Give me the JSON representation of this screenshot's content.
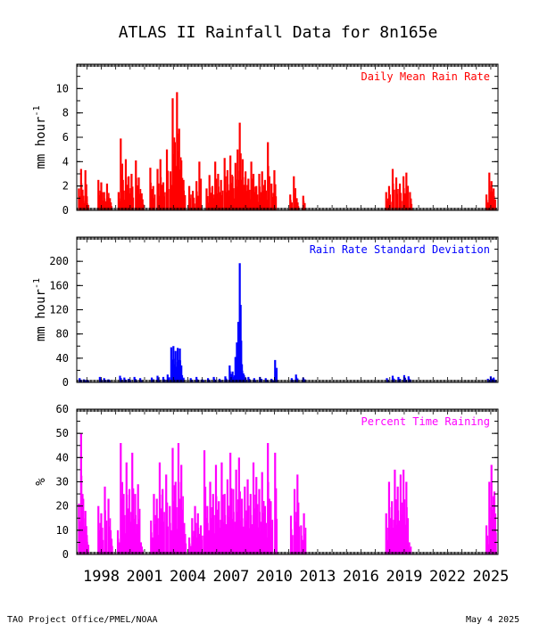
{
  "title": "ATLAS II Rainfall Data for 8n165e",
  "footer_left": "TAO Project Office/PMEL/NOAA",
  "footer_right": "May  4 2025",
  "colors": {
    "rate": "#ff0000",
    "sd": "#0000ff",
    "pct": "#ff00ff",
    "axis": "#000000"
  },
  "chart_data": [
    {
      "type": "bar",
      "label": "Daily Mean Rain Rate",
      "ylabel": "mm hour-1",
      "ylim": [
        0,
        12
      ],
      "yticks": [
        0,
        2,
        4,
        6,
        8,
        10
      ],
      "xlim": [
        1996.3,
        2025.5
      ],
      "series_points": [
        [
          1996.45,
          1.8
        ],
        [
          1996.6,
          3.4
        ],
        [
          1996.75,
          1.2
        ],
        [
          1996.9,
          3.3
        ],
        [
          1997.0,
          0.9
        ],
        [
          1997.8,
          2.5
        ],
        [
          1998.0,
          2.3
        ],
        [
          1998.2,
          1.5
        ],
        [
          1998.4,
          2.2
        ],
        [
          1998.6,
          1.0
        ],
        [
          1999.2,
          1.5
        ],
        [
          1999.35,
          5.9
        ],
        [
          1999.5,
          2.5
        ],
        [
          1999.7,
          4.2
        ],
        [
          1999.9,
          2.8
        ],
        [
          2000.1,
          3.0
        ],
        [
          2000.4,
          4.1
        ],
        [
          2000.6,
          2.7
        ],
        [
          2000.8,
          1.4
        ],
        [
          2001.4,
          3.5
        ],
        [
          2001.6,
          2.0
        ],
        [
          2001.9,
          3.4
        ],
        [
          2002.1,
          4.2
        ],
        [
          2002.3,
          2.3
        ],
        [
          2002.55,
          5.0
        ],
        [
          2002.8,
          3.2
        ],
        [
          2002.95,
          9.2
        ],
        [
          2003.1,
          5.6
        ],
        [
          2003.25,
          9.7
        ],
        [
          2003.4,
          6.7
        ],
        [
          2003.55,
          4.1
        ],
        [
          2003.7,
          2.5
        ],
        [
          2004.1,
          2.0
        ],
        [
          2004.35,
          1.6
        ],
        [
          2004.6,
          2.4
        ],
        [
          2004.8,
          4.0
        ],
        [
          2005.3,
          1.8
        ],
        [
          2005.5,
          2.9
        ],
        [
          2005.7,
          2.0
        ],
        [
          2005.9,
          4.0
        ],
        [
          2006.1,
          3.0
        ],
        [
          2006.3,
          2.5
        ],
        [
          2006.55,
          4.3
        ],
        [
          2006.75,
          3.3
        ],
        [
          2006.95,
          4.5
        ],
        [
          2007.1,
          2.8
        ],
        [
          2007.3,
          3.9
        ],
        [
          2007.45,
          5.0
        ],
        [
          2007.6,
          7.2
        ],
        [
          2007.8,
          4.2
        ],
        [
          2008.0,
          3.2
        ],
        [
          2008.2,
          2.6
        ],
        [
          2008.4,
          4.0
        ],
        [
          2008.55,
          3.0
        ],
        [
          2008.75,
          2.0
        ],
        [
          2008.95,
          3.0
        ],
        [
          2009.15,
          3.2
        ],
        [
          2009.35,
          2.5
        ],
        [
          2009.55,
          5.6
        ],
        [
          2009.8,
          2.2
        ],
        [
          2010.0,
          3.3
        ],
        [
          2011.1,
          1.3
        ],
        [
          2011.35,
          2.8
        ],
        [
          2011.55,
          1.0
        ],
        [
          2012.0,
          1.2
        ],
        [
          2017.75,
          1.5
        ],
        [
          2017.95,
          2.0
        ],
        [
          2018.2,
          3.4
        ],
        [
          2018.45,
          2.7
        ],
        [
          2018.7,
          2.2
        ],
        [
          2018.95,
          2.8
        ],
        [
          2019.15,
          3.1
        ],
        [
          2019.4,
          1.5
        ],
        [
          2024.7,
          1.3
        ],
        [
          2024.9,
          3.1
        ],
        [
          2025.05,
          2.4
        ],
        [
          2025.2,
          1.8
        ]
      ]
    },
    {
      "type": "bar",
      "label": "Rain Rate Standard Deviation",
      "ylabel": "mm hour-1",
      "ylim": [
        0,
        240
      ],
      "yticks": [
        0,
        40,
        80,
        120,
        160,
        200
      ],
      "xlim": [
        1996.3,
        2025.5
      ],
      "series_points": [
        [
          1996.5,
          7
        ],
        [
          1996.8,
          5
        ],
        [
          1997.0,
          4
        ],
        [
          1997.9,
          9
        ],
        [
          1998.2,
          7
        ],
        [
          1998.5,
          5
        ],
        [
          1999.3,
          11
        ],
        [
          1999.6,
          8
        ],
        [
          1999.9,
          6
        ],
        [
          2000.3,
          9
        ],
        [
          2000.7,
          7
        ],
        [
          2001.5,
          8
        ],
        [
          2001.9,
          11
        ],
        [
          2002.3,
          9
        ],
        [
          2002.6,
          13
        ],
        [
          2002.85,
          58
        ],
        [
          2003.0,
          60
        ],
        [
          2003.15,
          52
        ],
        [
          2003.3,
          57
        ],
        [
          2003.45,
          56
        ],
        [
          2003.6,
          12
        ],
        [
          2004.2,
          7
        ],
        [
          2004.6,
          9
        ],
        [
          2005.0,
          5
        ],
        [
          2005.4,
          7
        ],
        [
          2005.8,
          9
        ],
        [
          2006.2,
          6
        ],
        [
          2006.6,
          10
        ],
        [
          2006.9,
          28
        ],
        [
          2007.1,
          18
        ],
        [
          2007.3,
          42
        ],
        [
          2007.4,
          66
        ],
        [
          2007.5,
          100
        ],
        [
          2007.6,
          197
        ],
        [
          2007.75,
          30
        ],
        [
          2007.9,
          12
        ],
        [
          2008.2,
          9
        ],
        [
          2008.6,
          7
        ],
        [
          2009.0,
          9
        ],
        [
          2009.4,
          7
        ],
        [
          2009.8,
          6
        ],
        [
          2010.05,
          37
        ],
        [
          2011.2,
          7
        ],
        [
          2011.5,
          13
        ],
        [
          2012.0,
          8
        ],
        [
          2017.8,
          7
        ],
        [
          2018.2,
          11
        ],
        [
          2018.6,
          9
        ],
        [
          2019.0,
          12
        ],
        [
          2019.3,
          10
        ],
        [
          2024.8,
          6
        ],
        [
          2025.0,
          10
        ],
        [
          2025.2,
          8
        ]
      ]
    },
    {
      "type": "bar",
      "label": "Percent Time Raining",
      "ylabel": "%",
      "ylim": [
        0,
        60
      ],
      "yticks": [
        0,
        10,
        20,
        30,
        40,
        50,
        60
      ],
      "xlim": [
        1996.3,
        2025.5
      ],
      "series_points": [
        [
          1996.45,
          21
        ],
        [
          1996.6,
          50
        ],
        [
          1996.75,
          23
        ],
        [
          1996.9,
          18
        ],
        [
          1997.0,
          8
        ],
        [
          1997.8,
          20
        ],
        [
          1998.0,
          17
        ],
        [
          1998.25,
          28
        ],
        [
          1998.5,
          23
        ],
        [
          1998.65,
          10
        ],
        [
          1999.15,
          10
        ],
        [
          1999.35,
          46
        ],
        [
          1999.55,
          25
        ],
        [
          1999.75,
          38
        ],
        [
          1999.95,
          27
        ],
        [
          2000.15,
          42
        ],
        [
          2000.35,
          25
        ],
        [
          2000.55,
          29
        ],
        [
          2000.75,
          5
        ],
        [
          2001.45,
          14
        ],
        [
          2001.65,
          25
        ],
        [
          2001.85,
          23
        ],
        [
          2002.05,
          38
        ],
        [
          2002.25,
          27
        ],
        [
          2002.5,
          33
        ],
        [
          2002.75,
          20
        ],
        [
          2002.95,
          44
        ],
        [
          2003.15,
          30
        ],
        [
          2003.35,
          46
        ],
        [
          2003.55,
          37
        ],
        [
          2003.75,
          13
        ],
        [
          2004.1,
          7
        ],
        [
          2004.3,
          15
        ],
        [
          2004.5,
          20
        ],
        [
          2004.7,
          17
        ],
        [
          2004.9,
          12
        ],
        [
          2005.15,
          43
        ],
        [
          2005.35,
          20
        ],
        [
          2005.55,
          30
        ],
        [
          2005.75,
          25
        ],
        [
          2005.95,
          37
        ],
        [
          2006.15,
          22
        ],
        [
          2006.35,
          38
        ],
        [
          2006.55,
          25
        ],
        [
          2006.75,
          31
        ],
        [
          2006.95,
          42
        ],
        [
          2007.15,
          27
        ],
        [
          2007.35,
          35
        ],
        [
          2007.55,
          40
        ],
        [
          2007.75,
          23
        ],
        [
          2007.95,
          28
        ],
        [
          2008.15,
          31
        ],
        [
          2008.35,
          25
        ],
        [
          2008.55,
          38
        ],
        [
          2008.75,
          32
        ],
        [
          2008.95,
          27
        ],
        [
          2009.15,
          34
        ],
        [
          2009.35,
          20
        ],
        [
          2009.55,
          46
        ],
        [
          2009.75,
          22
        ],
        [
          2010.05,
          42
        ],
        [
          2011.15,
          16
        ],
        [
          2011.4,
          27
        ],
        [
          2011.6,
          33
        ],
        [
          2011.85,
          12
        ],
        [
          2012.05,
          17
        ],
        [
          2017.75,
          17
        ],
        [
          2017.95,
          30
        ],
        [
          2018.15,
          22
        ],
        [
          2018.35,
          35
        ],
        [
          2018.55,
          28
        ],
        [
          2018.75,
          33
        ],
        [
          2018.95,
          35
        ],
        [
          2019.15,
          30
        ],
        [
          2019.35,
          5
        ],
        [
          2024.7,
          12
        ],
        [
          2024.9,
          30
        ],
        [
          2025.05,
          37
        ],
        [
          2025.25,
          26
        ]
      ]
    }
  ],
  "x_axis": {
    "tick_labels": [
      "1998",
      "2001",
      "2004",
      "2007",
      "2010",
      "2013",
      "2016",
      "2019",
      "2022",
      "2025"
    ],
    "tick_values": [
      1998,
      2001,
      2004,
      2007,
      2010,
      2013,
      2016,
      2019,
      2022,
      2025
    ]
  }
}
